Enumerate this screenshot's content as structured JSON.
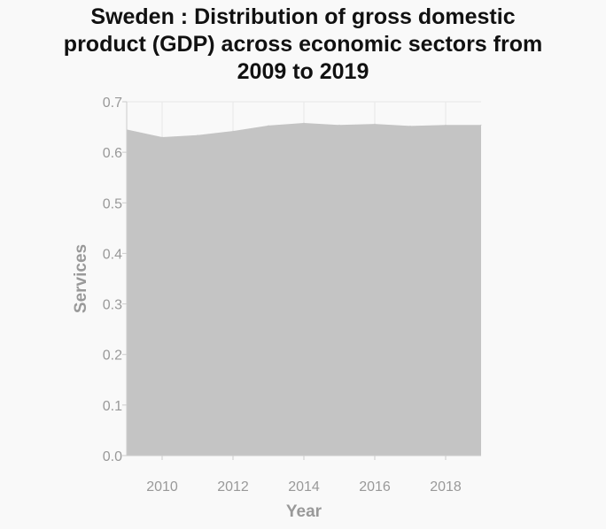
{
  "chart_data": {
    "type": "area",
    "title_lines": [
      "Sweden : Distribution of gross domestic",
      "product (GDP) across economic sectors from",
      "2009 to 2019"
    ],
    "xlabel": "Year",
    "ylabel": "Services",
    "x": [
      2009,
      2010,
      2011,
      2012,
      2013,
      2014,
      2015,
      2016,
      2017,
      2018,
      2019
    ],
    "series": [
      {
        "values": [
          0.645,
          0.63,
          0.634,
          0.642,
          0.653,
          0.658,
          0.654,
          0.656,
          0.652,
          0.654,
          0.654
        ]
      }
    ],
    "xlim": [
      2009,
      2019
    ],
    "ylim": [
      0,
      0.7
    ],
    "x_ticks": [
      2010,
      2012,
      2014,
      2016,
      2018
    ],
    "x_tick_labels": [
      "2010",
      "2012",
      "2014",
      "2016",
      "2018"
    ],
    "y_ticks": [
      0,
      0.1,
      0.2,
      0.3,
      0.4,
      0.5,
      0.6,
      0.7
    ],
    "y_tick_labels": [
      "0.0",
      "0.1",
      "0.2",
      "0.3",
      "0.4",
      "0.5",
      "0.6",
      "0.7"
    ],
    "grid": true,
    "colors": {
      "area": "#c4c4c4",
      "grid": "#e8e8e8",
      "axis": "#cccccc",
      "tick_text": "#999999"
    }
  }
}
